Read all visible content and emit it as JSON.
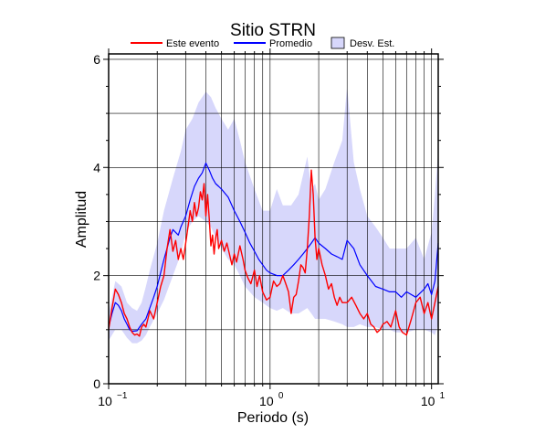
{
  "chart_data": {
    "type": "line",
    "title": "Sitio STRN",
    "xlabel": "Periodo (s)",
    "ylabel": "Amplitud",
    "xscale": "log",
    "xlim": [
      0.1,
      11
    ],
    "ylim": [
      0,
      6.1
    ],
    "yticks": [
      "0",
      "2",
      "4",
      "6"
    ],
    "xticks": [
      {
        "value": 0.1,
        "base": "10",
        "exp": "−1"
      },
      {
        "value": 1,
        "base": "10",
        "exp": "0"
      },
      {
        "value": 10,
        "base": "10",
        "exp": "1"
      }
    ],
    "grid": true,
    "legend_position": "top",
    "legend": [
      {
        "label": "Este evento",
        "kind": "line",
        "color": "#ff0000"
      },
      {
        "label": "Promedio",
        "kind": "line",
        "color": "#0000ff"
      },
      {
        "label": "Desv. Est.",
        "kind": "box",
        "color": "#d7d7fb"
      }
    ],
    "band": {
      "name": "Desv. Est.",
      "color": "#d7d7fb",
      "x": [
        0.1,
        0.11,
        0.12,
        0.13,
        0.14,
        0.15,
        0.16,
        0.17,
        0.18,
        0.2,
        0.22,
        0.25,
        0.28,
        0.3,
        0.33,
        0.36,
        0.4,
        0.43,
        0.46,
        0.5,
        0.55,
        0.6,
        0.65,
        0.7,
        0.8,
        0.9,
        1.0,
        1.1,
        1.2,
        1.35,
        1.5,
        1.7,
        1.8,
        1.9,
        2.0,
        2.2,
        2.5,
        2.8,
        3.0,
        3.3,
        3.6,
        4.0,
        4.5,
        5.0,
        5.5,
        6.0,
        7.0,
        8.0,
        9.0,
        10.0,
        10.5,
        11.0
      ],
      "upper": [
        1.3,
        1.9,
        1.8,
        1.5,
        1.4,
        1.35,
        1.5,
        1.8,
        2.1,
        2.6,
        3.2,
        3.8,
        4.3,
        4.7,
        4.9,
        5.2,
        5.4,
        5.3,
        5.1,
        4.9,
        4.7,
        4.9,
        4.5,
        4.1,
        3.6,
        3.2,
        3.2,
        3.6,
        3.3,
        3.3,
        3.5,
        4.2,
        3.6,
        3.7,
        3.4,
        3.6,
        4.1,
        4.5,
        5.5,
        4.1,
        3.6,
        3.1,
        2.9,
        2.7,
        2.5,
        2.5,
        2.5,
        2.7,
        2.3,
        2.8,
        3.5,
        4.3
      ],
      "lower": [
        0.8,
        1.0,
        1.0,
        0.85,
        0.75,
        0.75,
        0.8,
        0.9,
        1.05,
        1.3,
        1.55,
        2.0,
        2.4,
        2.8,
        3.0,
        3.1,
        3.0,
        2.9,
        2.7,
        2.5,
        2.3,
        2.2,
        2.0,
        1.8,
        1.6,
        1.5,
        1.4,
        1.35,
        1.4,
        1.3,
        1.3,
        1.4,
        1.3,
        1.2,
        1.2,
        1.2,
        1.15,
        1.1,
        1.05,
        1.05,
        1.1,
        1.05,
        1.05,
        1.0,
        1.0,
        0.95,
        0.95,
        1.0,
        1.0,
        0.95,
        0.9,
        1.1
      ]
    },
    "series": [
      {
        "name": "Promedio",
        "color": "#0000ff",
        "x": [
          0.1,
          0.105,
          0.11,
          0.115,
          0.12,
          0.125,
          0.13,
          0.135,
          0.14,
          0.15,
          0.16,
          0.17,
          0.18,
          0.19,
          0.2,
          0.22,
          0.24,
          0.25,
          0.27,
          0.28,
          0.3,
          0.32,
          0.34,
          0.36,
          0.38,
          0.4,
          0.42,
          0.44,
          0.46,
          0.48,
          0.5,
          0.55,
          0.6,
          0.65,
          0.7,
          0.75,
          0.8,
          0.85,
          0.9,
          0.95,
          1.0,
          1.1,
          1.2,
          1.3,
          1.4,
          1.5,
          1.6,
          1.7,
          1.8,
          1.9,
          2.0,
          2.2,
          2.4,
          2.6,
          2.8,
          3.0,
          3.3,
          3.6,
          4.0,
          4.5,
          5.0,
          5.5,
          6.0,
          6.5,
          7.0,
          8.0,
          9.0,
          9.5,
          10.0,
          10.5,
          11.0
        ],
        "y": [
          1.05,
          1.3,
          1.5,
          1.45,
          1.35,
          1.2,
          1.1,
          1.0,
          0.97,
          0.98,
          1.1,
          1.2,
          1.4,
          1.6,
          1.8,
          2.3,
          2.7,
          2.85,
          2.75,
          2.9,
          3.1,
          3.4,
          3.65,
          3.8,
          3.9,
          4.08,
          3.95,
          3.8,
          3.7,
          3.65,
          3.6,
          3.45,
          3.2,
          3.0,
          2.8,
          2.6,
          2.45,
          2.3,
          2.2,
          2.1,
          2.05,
          2.0,
          2.0,
          2.1,
          2.2,
          2.3,
          2.4,
          2.5,
          2.6,
          2.7,
          2.6,
          2.5,
          2.4,
          2.35,
          2.3,
          2.65,
          2.5,
          2.2,
          2.0,
          1.8,
          1.75,
          1.7,
          1.7,
          1.6,
          1.7,
          1.6,
          1.75,
          1.85,
          1.65,
          1.9,
          2.6
        ]
      },
      {
        "name": "Este evento",
        "color": "#ff0000",
        "x": [
          0.1,
          0.105,
          0.11,
          0.115,
          0.12,
          0.125,
          0.13,
          0.135,
          0.14,
          0.145,
          0.15,
          0.155,
          0.16,
          0.165,
          0.17,
          0.175,
          0.18,
          0.19,
          0.2,
          0.21,
          0.22,
          0.23,
          0.24,
          0.25,
          0.26,
          0.27,
          0.28,
          0.29,
          0.3,
          0.31,
          0.32,
          0.33,
          0.34,
          0.35,
          0.36,
          0.37,
          0.38,
          0.39,
          0.4,
          0.41,
          0.42,
          0.43,
          0.44,
          0.45,
          0.46,
          0.47,
          0.48,
          0.5,
          0.52,
          0.54,
          0.56,
          0.58,
          0.6,
          0.62,
          0.65,
          0.68,
          0.7,
          0.73,
          0.76,
          0.8,
          0.83,
          0.86,
          0.9,
          0.95,
          1.0,
          1.05,
          1.1,
          1.15,
          1.2,
          1.25,
          1.3,
          1.35,
          1.4,
          1.45,
          1.5,
          1.55,
          1.6,
          1.65,
          1.7,
          1.75,
          1.8,
          1.85,
          1.9,
          1.95,
          2.0,
          2.1,
          2.2,
          2.3,
          2.4,
          2.5,
          2.6,
          2.7,
          2.8,
          3.0,
          3.2,
          3.4,
          3.6,
          3.8,
          4.0,
          4.2,
          4.4,
          4.6,
          4.8,
          5.0,
          5.3,
          5.6,
          6.0,
          6.3,
          6.6,
          7.0,
          7.5,
          8.0,
          8.5,
          9.0,
          9.5,
          10.0,
          10.5,
          11.0
        ],
        "y": [
          1.0,
          1.4,
          1.75,
          1.65,
          1.5,
          1.3,
          1.2,
          1.05,
          0.95,
          0.9,
          0.92,
          0.88,
          1.05,
          1.1,
          1.05,
          1.2,
          1.35,
          1.2,
          1.5,
          1.8,
          2.0,
          2.5,
          2.85,
          2.45,
          2.65,
          2.3,
          2.5,
          2.3,
          2.6,
          2.9,
          3.2,
          3.0,
          3.35,
          3.1,
          3.25,
          3.55,
          3.4,
          3.7,
          3.1,
          3.5,
          3.05,
          2.55,
          2.75,
          2.4,
          2.7,
          2.85,
          2.5,
          2.65,
          2.45,
          2.6,
          2.4,
          2.2,
          2.4,
          2.25,
          2.55,
          2.3,
          2.1,
          1.95,
          1.85,
          2.1,
          1.8,
          2.0,
          1.7,
          1.55,
          1.6,
          1.9,
          1.8,
          1.85,
          2.0,
          1.85,
          1.7,
          1.3,
          1.6,
          1.65,
          1.9,
          2.2,
          2.15,
          2.05,
          2.5,
          3.1,
          3.95,
          3.5,
          2.7,
          2.3,
          2.5,
          2.2,
          2.0,
          1.75,
          1.85,
          1.6,
          1.45,
          1.6,
          1.5,
          1.5,
          1.6,
          1.45,
          1.3,
          1.2,
          1.3,
          1.1,
          1.05,
          0.95,
          1.0,
          1.1,
          1.15,
          1.05,
          1.35,
          1.05,
          0.95,
          0.9,
          1.2,
          1.5,
          1.6,
          1.3,
          1.5,
          1.2,
          1.5,
          1.8
        ]
      }
    ]
  }
}
